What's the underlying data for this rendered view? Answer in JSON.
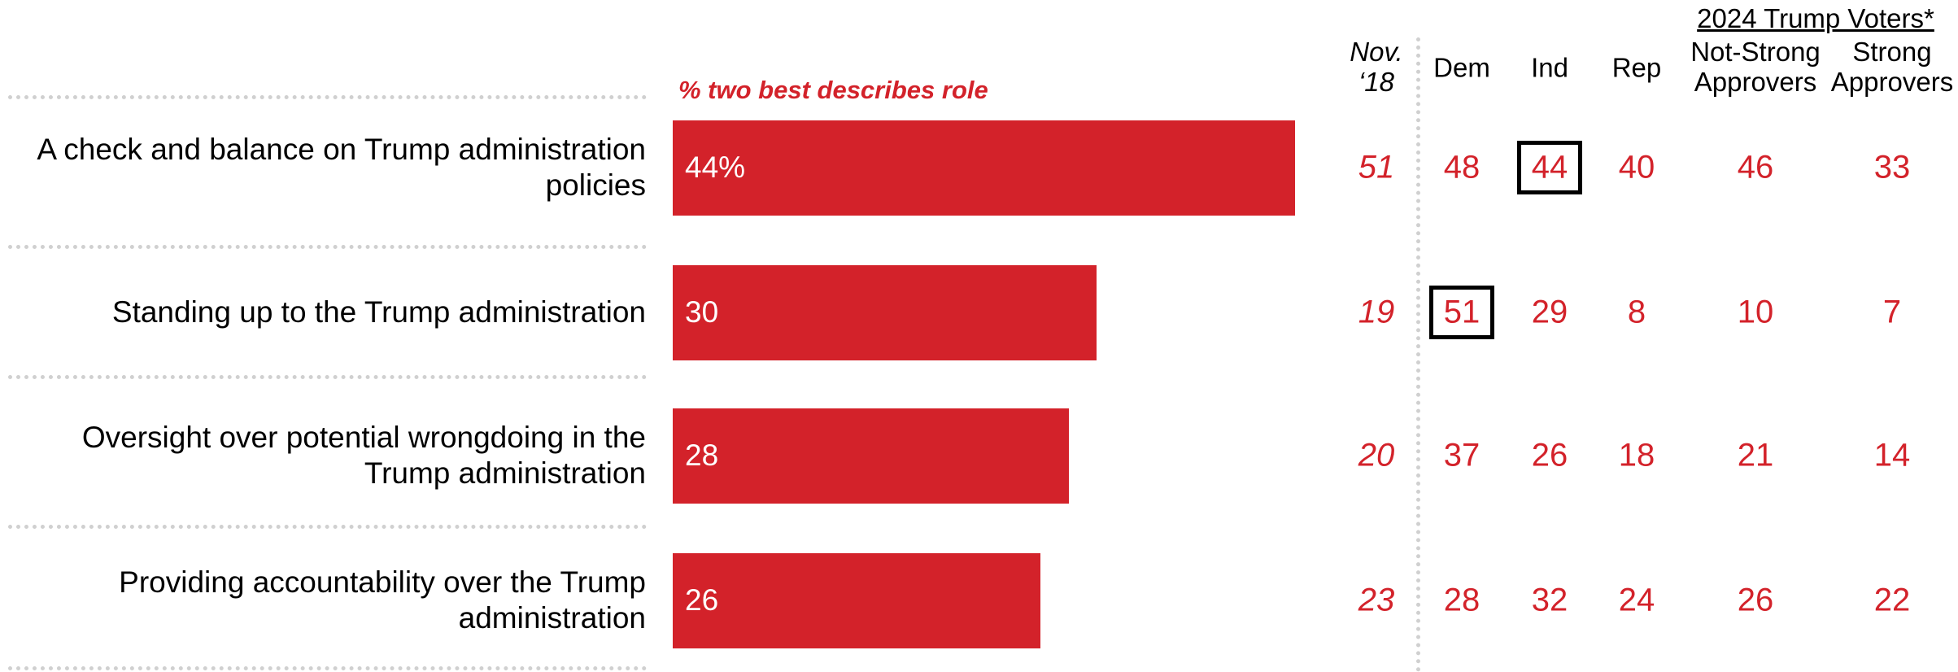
{
  "chart_data": {
    "type": "bar",
    "orientation": "horizontal",
    "subtitle": "% two best describes role",
    "categories": [
      "A check and balance on Trump administration policies",
      "Standing up to the Trump administration",
      "Oversight over potential wrongdoing in the Trump administration",
      "Providing accountability over the Trump administration"
    ],
    "values": [
      44,
      30,
      28,
      26
    ],
    "value_labels": [
      "44%",
      "30",
      "28",
      "26"
    ],
    "color": "#d3222a"
  },
  "table": {
    "group_header": "2024 Trump Voters*",
    "columns": [
      [
        "Nov.",
        "‘18"
      ],
      [
        "Dem"
      ],
      [
        "Ind"
      ],
      [
        "Rep"
      ],
      [
        "Not-Strong",
        "Approvers"
      ],
      [
        "Strong",
        "Approvers"
      ]
    ],
    "rows": [
      [
        51,
        48,
        44,
        40,
        46,
        33
      ],
      [
        19,
        51,
        29,
        8,
        10,
        7
      ],
      [
        20,
        37,
        26,
        18,
        21,
        14
      ],
      [
        23,
        28,
        32,
        24,
        26,
        22
      ]
    ],
    "highlighted": [
      [
        0,
        2
      ],
      [
        1,
        1
      ]
    ]
  }
}
